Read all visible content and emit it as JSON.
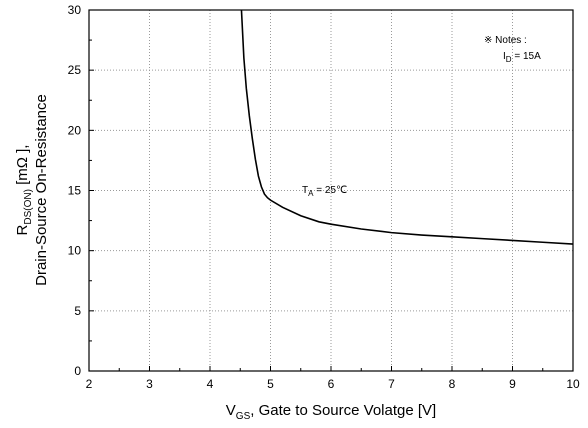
{
  "chart_data": {
    "type": "line",
    "xlim": [
      2,
      10
    ],
    "ylim": [
      0,
      30
    ],
    "x_ticks": [
      2,
      3,
      4,
      5,
      6,
      7,
      8,
      9,
      10
    ],
    "y_ticks": [
      0,
      5,
      10,
      15,
      20,
      25,
      30
    ],
    "grid": true,
    "grid_style": "dotted",
    "xlabel": {
      "main": "V",
      "sub": "GS",
      "rest": ", Gate to Source Volatge [V]"
    },
    "ylabel": {
      "line1": {
        "main": "R",
        "sub": "DS(ON)",
        "rest": " [mΩ ],"
      },
      "line2": "Drain-Source On-Resistance"
    },
    "annotations": {
      "notes_title": "※ Notes :",
      "notes_id_main": "I",
      "notes_id_sub": "D",
      "notes_id_rest": " = 15A",
      "curve_label_main": "T",
      "curve_label_sub": "A",
      "curve_label_rest": " = 25℃"
    },
    "series": [
      {
        "color": "#000000",
        "points": [
          [
            4.52,
            30.0
          ],
          [
            4.56,
            26.0
          ],
          [
            4.6,
            23.5
          ],
          [
            4.65,
            21.2
          ],
          [
            4.7,
            19.3
          ],
          [
            4.75,
            17.6
          ],
          [
            4.8,
            16.2
          ],
          [
            4.85,
            15.3
          ],
          [
            4.9,
            14.7
          ],
          [
            4.95,
            14.4
          ],
          [
            5.0,
            14.2
          ],
          [
            5.2,
            13.6
          ],
          [
            5.5,
            12.9
          ],
          [
            5.8,
            12.4
          ],
          [
            6.0,
            12.2
          ],
          [
            6.5,
            11.8
          ],
          [
            7.0,
            11.5
          ],
          [
            7.5,
            11.3
          ],
          [
            8.0,
            11.15
          ],
          [
            8.5,
            11.0
          ],
          [
            9.0,
            10.85
          ],
          [
            9.5,
            10.7
          ],
          [
            10.0,
            10.55
          ]
        ]
      }
    ]
  }
}
